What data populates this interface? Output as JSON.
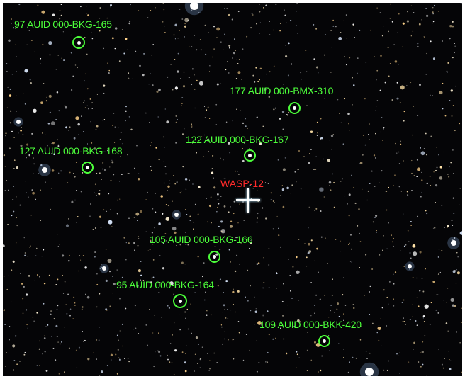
{
  "target": {
    "name": "WASP-12",
    "color": "#ff2a2a"
  },
  "comparison_color": "#4cff3a",
  "comparison_stars": [
    {
      "label": "97 AUID 000-BKG-165"
    },
    {
      "label": "177 AUID 000-BMX-310"
    },
    {
      "label": "122 AUID 000-BKG-167"
    },
    {
      "label": "127 AUID 000-BKG-168"
    },
    {
      "label": "105 AUID 000-BKG-166"
    },
    {
      "label": "95 AUID 000-BKG-164"
    },
    {
      "label": "109 AUID 000-BKK-420"
    }
  ],
  "background_color": "#050507"
}
